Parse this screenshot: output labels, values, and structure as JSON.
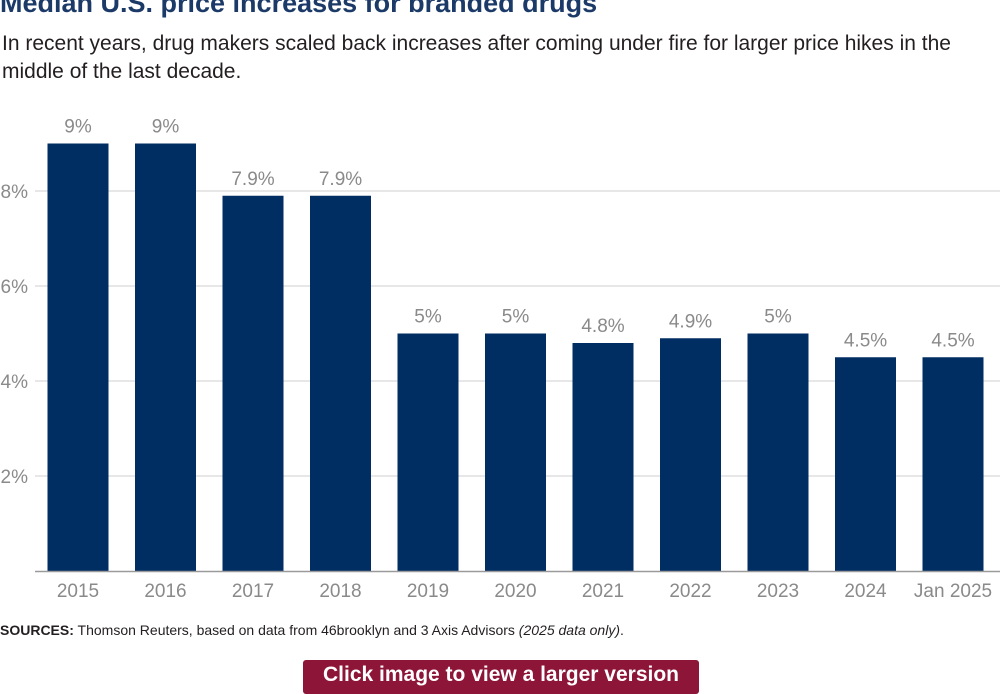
{
  "header": {
    "title": "Median U.S. price increases for branded drugs",
    "subtitle": "In recent years, drug makers scaled back increases after coming under fire for larger price hikes in the middle of the last decade."
  },
  "chart_data": {
    "type": "bar",
    "title": "Median U.S. price increases for branded drugs",
    "categories": [
      "2015",
      "2016",
      "2017",
      "2018",
      "2019",
      "2020",
      "2021",
      "2022",
      "2023",
      "2024",
      "Jan 2025"
    ],
    "values": [
      9,
      9,
      7.9,
      7.9,
      5,
      5,
      4.8,
      4.9,
      5,
      4.5,
      4.5
    ],
    "value_labels": [
      "9%",
      "9%",
      "7.9%",
      "7.9%",
      "5%",
      "5%",
      "4.8%",
      "4.9%",
      "5%",
      "4.5%",
      "4.5%"
    ],
    "yticks": [
      2,
      4,
      6,
      8
    ],
    "ytick_labels": [
      "2%",
      "4%",
      "6%",
      "8%"
    ],
    "ylim": [
      0,
      9.3
    ],
    "xlabel": "",
    "ylabel": "",
    "grid": true,
    "bar_color": "#002d62"
  },
  "sources": {
    "label": "SOURCES:",
    "text": " Thomson Reuters, based on data from 46brooklyn and 3 Axis Advisors ",
    "note": "(2025 data only)",
    "end": "."
  },
  "cta": {
    "label": "Click image to view a larger version"
  }
}
